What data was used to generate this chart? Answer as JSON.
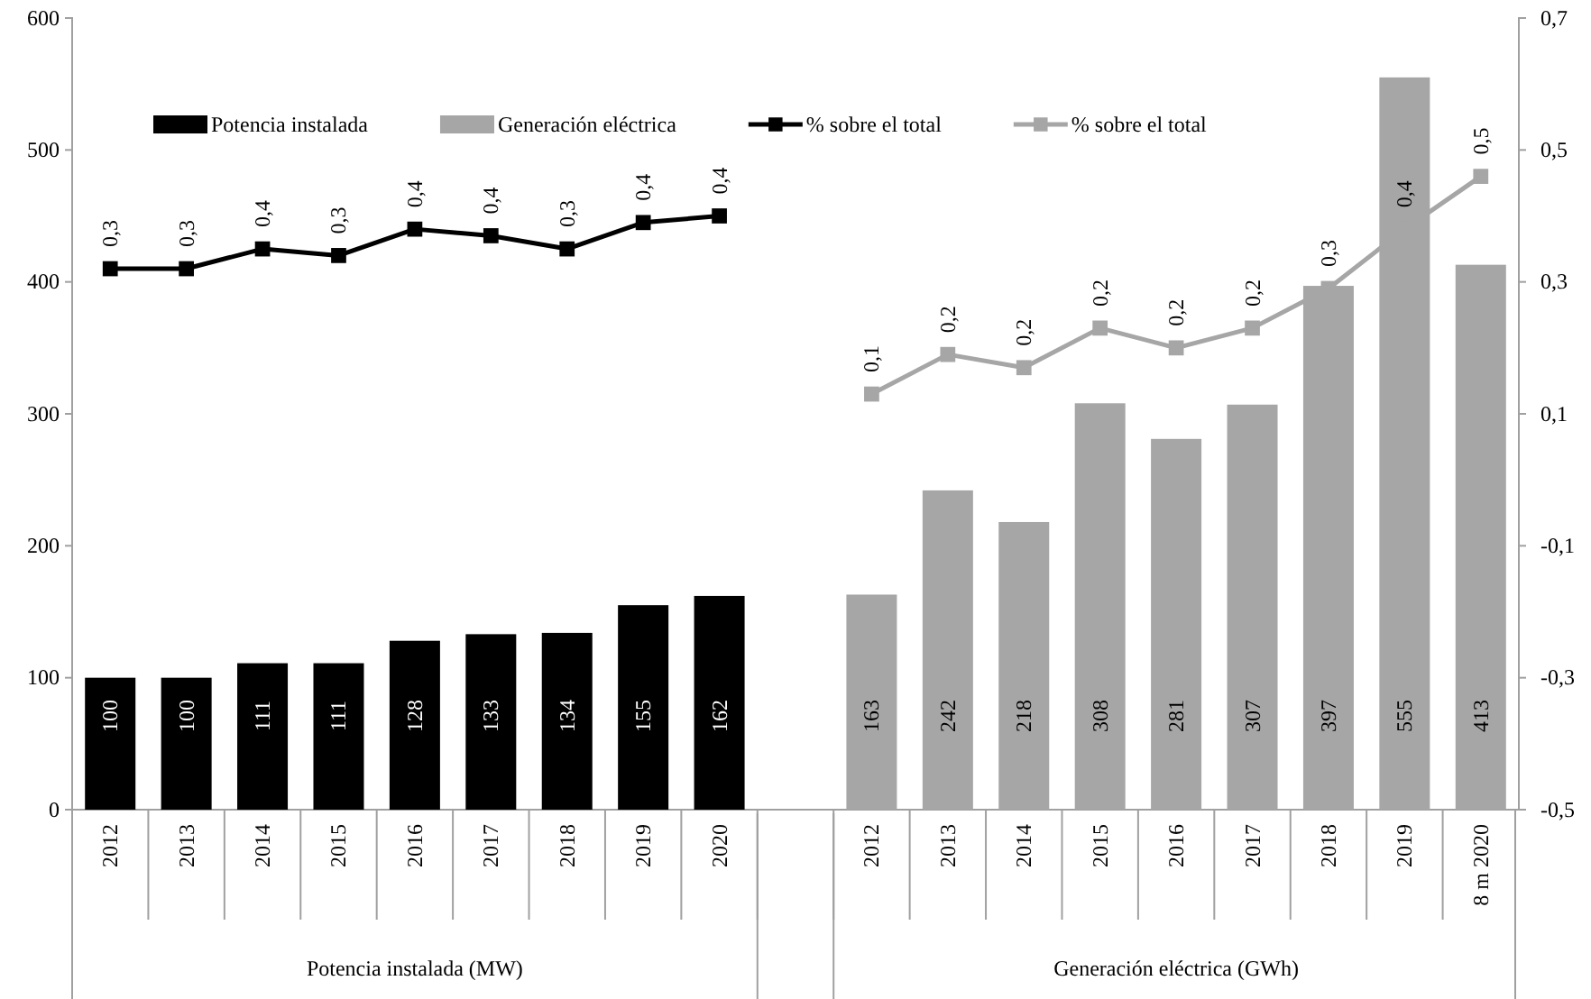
{
  "chart_data": {
    "type": "bar",
    "categories": [
      "2012",
      "2013",
      "2014",
      "2015",
      "2016",
      "2017",
      "2018",
      "2019",
      "2020",
      null,
      "2012",
      "2013",
      "2014",
      "2015",
      "2016",
      "2017",
      "2018",
      "2019",
      "8 m 2020"
    ],
    "series": [
      {
        "name": "Potencia instalada",
        "color": "#000000",
        "values": [
          100,
          100,
          111,
          111,
          128,
          133,
          134,
          155,
          162,
          null,
          null,
          null,
          null,
          null,
          null,
          null,
          null,
          null,
          null
        ],
        "value_labels": [
          "100",
          "100",
          "111",
          "111",
          "128",
          "133",
          "134",
          "155",
          "162",
          null,
          null,
          null,
          null,
          null,
          null,
          null,
          null,
          null,
          null
        ]
      },
      {
        "name": "Generación eléctrica",
        "color": "#a6a6a6",
        "values": [
          null,
          null,
          null,
          null,
          null,
          null,
          null,
          null,
          null,
          null,
          163,
          242,
          218,
          308,
          281,
          307,
          397,
          555,
          413
        ],
        "value_labels": [
          null,
          null,
          null,
          null,
          null,
          null,
          null,
          null,
          null,
          null,
          "163",
          "242",
          "218",
          "308",
          "281",
          "307",
          "397",
          "555",
          "413"
        ]
      },
      {
        "name": "% sobre el total",
        "type": "line",
        "axis": "y2",
        "color": "#000000",
        "values": [
          0.32,
          0.32,
          0.35,
          0.34,
          0.38,
          0.37,
          0.35,
          0.39,
          0.4,
          null,
          null,
          null,
          null,
          null,
          null,
          null,
          null,
          null,
          null
        ],
        "value_labels": [
          "0,3",
          "0,3",
          "0,4",
          "0,3",
          "0,4",
          "0,4",
          "0,3",
          "0,4",
          "0,4",
          null,
          null,
          null,
          null,
          null,
          null,
          null,
          null,
          null,
          null
        ]
      },
      {
        "name": "% sobre el total",
        "type": "line",
        "axis": "y2",
        "color": "#a6a6a6",
        "values": [
          null,
          null,
          null,
          null,
          null,
          null,
          null,
          null,
          null,
          null,
          0.13,
          0.19,
          0.17,
          0.23,
          0.2,
          0.23,
          0.29,
          0.38,
          0.46
        ],
        "value_labels": [
          null,
          null,
          null,
          null,
          null,
          null,
          null,
          null,
          null,
          null,
          "0,1",
          "0,2",
          "0,2",
          "0,2",
          "0,2",
          "0,2",
          "0,3",
          "0,4",
          "0,5"
        ]
      }
    ],
    "ylim": [
      0,
      600
    ],
    "yticks": [
      0,
      100,
      200,
      300,
      400,
      500,
      600
    ],
    "y2lim": [
      -0.5,
      0.7
    ],
    "y2ticks": [
      {
        "value": -0.5,
        "label": "-0,5"
      },
      {
        "value": -0.3,
        "label": "-0,3"
      },
      {
        "value": -0.1,
        "label": "-0,1"
      },
      {
        "value": 0.1,
        "label": "0,1"
      },
      {
        "value": 0.3,
        "label": "0,3"
      },
      {
        "value": 0.5,
        "label": "0,5"
      },
      {
        "value": 0.7,
        "label": "0,7"
      }
    ],
    "annotations": [
      "Potencia instalada (MW)",
      "Generación eléctrica (GWh)"
    ],
    "marker": "square",
    "legend": "top",
    "grid": false
  }
}
